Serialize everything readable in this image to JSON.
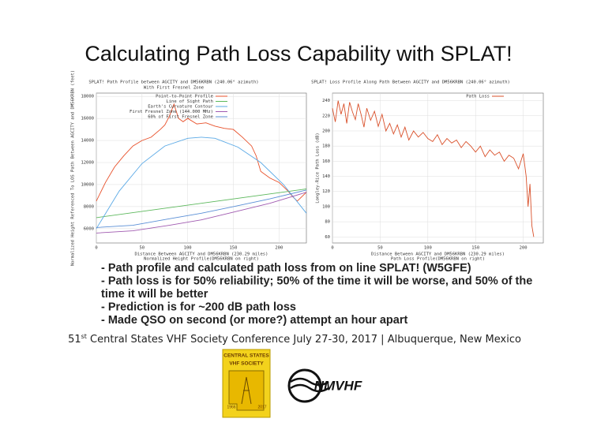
{
  "slide": {
    "title": "Calculating Path Loss Capability with SPLAT!",
    "bullets": [
      "- Path profile and calculated path loss from on line SPLAT! (W5GFE)",
      "- Path loss is for 50% reliability; 50% of the time it will be worse, and 50% of the",
      "time it will be better",
      "- Prediction is for ~200 dB path loss",
      "- Made QSO on second (or more?) attempt an hour apart"
    ],
    "footer": {
      "number": "51",
      "suffix": "st",
      "text": " Central States VHF Society Conference July 27-30, 2017 | Albuquerque, New Mexico"
    },
    "logos": {
      "csvhfs": [
        "CENTRAL STATES",
        "VHF SOCIETY",
        "1966",
        "2017"
      ],
      "nmvhf": "NMVHF"
    }
  },
  "chart_data": [
    {
      "type": "line",
      "title": "SPLAT! Path Profile between AGCITY and DM56KRBN (240.06° azimuth)",
      "subtitle": "With First Fresnel Zone",
      "ylabel": "Normalized Height Referenced To LOS Path Between AGCITY and DM56KRBN (feet)",
      "xlabel": "Distance Between AGCITY and DM56KRBN (230.29 miles)",
      "xlabel2": "Normalized Height Profile(DM56KRBN on right)",
      "xlim": [
        0,
        230
      ],
      "ylim": [
        4700,
        18300
      ],
      "xticks": [
        0,
        50,
        100,
        150,
        200
      ],
      "yticks": [
        6000,
        8000,
        10000,
        12000,
        14000,
        16000,
        18000
      ],
      "grid": true,
      "legend": "upper right",
      "series": [
        {
          "name": "Point-to-Point Profile",
          "color": "#e8502a",
          "x": [
            0,
            10,
            20,
            30,
            40,
            50,
            60,
            70,
            75,
            80,
            85,
            90,
            95,
            100,
            110,
            120,
            130,
            140,
            150,
            160,
            170,
            175,
            180,
            190,
            200,
            210,
            215,
            220,
            225,
            230
          ],
          "values": [
            8500,
            10200,
            11600,
            12600,
            13500,
            14000,
            14300,
            15000,
            15400,
            16200,
            17300,
            16000,
            15700,
            16000,
            15500,
            15600,
            15300,
            15100,
            15000,
            14300,
            13500,
            12600,
            11200,
            10600,
            10200,
            9400,
            8900,
            8500,
            8900,
            9300
          ]
        },
        {
          "name": "Line of Sight Path",
          "color": "#5cb85c",
          "x": [
            0,
            230
          ],
          "values": [
            7000,
            9600
          ]
        },
        {
          "name": "Earth's Curvature Contour",
          "color": "#5aa9e6",
          "x": [
            0,
            25,
            50,
            75,
            100,
            115,
            130,
            155,
            180,
            205,
            230
          ],
          "values": [
            6000,
            9400,
            11900,
            13500,
            14200,
            14300,
            14200,
            13400,
            12000,
            10000,
            7400
          ]
        },
        {
          "name": "First Fresnel Zone (144.000 MHz)",
          "color": "#a05ab0",
          "x": [
            0,
            40,
            80,
            115,
            150,
            190,
            230
          ],
          "values": [
            5600,
            5800,
            6300,
            6800,
            7500,
            8300,
            9300
          ]
        },
        {
          "name": "60% of First Fresnel Zone",
          "color": "#5a8fd6",
          "x": [
            0,
            40,
            80,
            115,
            150,
            190,
            230
          ],
          "values": [
            6100,
            6300,
            6900,
            7400,
            8000,
            8700,
            9500
          ]
        }
      ]
    },
    {
      "type": "line",
      "title": "SPLAT! Loss Profile Along Path Between AGCITY and DM56KRBN (240.06° azimuth)",
      "ylabel": "Longley-Rice Path Loss (dB)",
      "xlabel": "Distance Between AGCITY and DM56KRBN (230.29 miles)",
      "xlabel2": "Path Loss Profile(DM56KRBN on right)",
      "xlim": [
        0,
        221
      ],
      "ylim": [
        52,
        250
      ],
      "xticks": [
        0,
        50,
        100,
        150,
        200
      ],
      "yticks": [
        60,
        80,
        100,
        120,
        140,
        160,
        180,
        200,
        220,
        240
      ],
      "grid": true,
      "legend": "upper right",
      "series": [
        {
          "name": "Path Loss",
          "color": "#d9502a",
          "x": [
            0,
            3,
            6,
            9,
            12,
            15,
            18,
            21,
            24,
            27,
            30,
            33,
            36,
            40,
            44,
            48,
            52,
            56,
            60,
            64,
            68,
            72,
            76,
            80,
            85,
            90,
            95,
            100,
            105,
            110,
            115,
            120,
            125,
            130,
            135,
            140,
            145,
            150,
            155,
            160,
            165,
            170,
            175,
            180,
            185,
            190,
            195,
            200,
            203,
            205,
            207,
            209,
            211
          ],
          "values": [
            230,
            212,
            240,
            222,
            236,
            210,
            238,
            225,
            215,
            236,
            222,
            205,
            230,
            214,
            226,
            206,
            222,
            200,
            210,
            196,
            208,
            192,
            205,
            188,
            200,
            192,
            198,
            190,
            186,
            195,
            182,
            190,
            184,
            188,
            178,
            186,
            180,
            172,
            180,
            166,
            175,
            168,
            172,
            160,
            168,
            164,
            150,
            170,
            140,
            100,
            130,
            75,
            60
          ]
        }
      ]
    }
  ]
}
